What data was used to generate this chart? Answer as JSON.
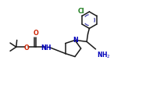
{
  "bg_color": "#ffffff",
  "line_color": "#1a1a1a",
  "line_width": 1.1,
  "N_color": "#0000bb",
  "O_color": "#cc2200",
  "Cl_color": "#1a7a1a",
  "aromatic_color": "#4444aa",
  "figw": 1.87,
  "figh": 1.15,
  "dpi": 100,
  "xlim": [
    0,
    10
  ],
  "ylim": [
    0,
    5.5
  ]
}
